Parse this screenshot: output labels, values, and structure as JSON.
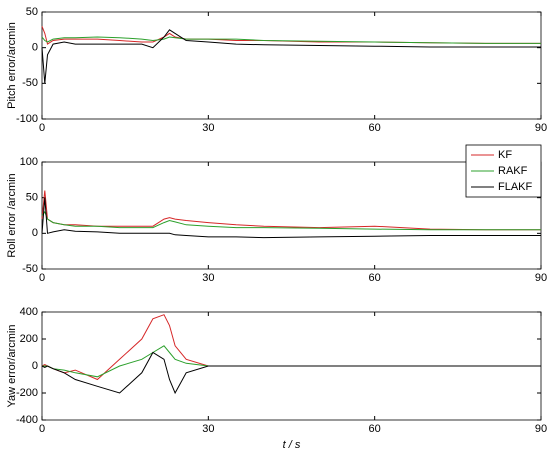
{
  "chart_data": [
    {
      "type": "line",
      "y_label": "Pitch error/arcmin",
      "x": [
        0,
        0.5,
        1,
        2,
        4,
        6,
        10,
        14,
        18,
        20,
        22,
        23,
        24,
        26,
        30,
        35,
        40,
        50,
        60,
        70,
        80,
        90
      ],
      "xlim": [
        0,
        90
      ],
      "xticks": [
        0,
        30,
        60,
        90
      ],
      "ylim": [
        -100,
        50
      ],
      "yticks": [
        -100,
        -50,
        0,
        50
      ],
      "series": [
        {
          "name": "KF",
          "color": "#d62728",
          "values": [
            30,
            20,
            5,
            10,
            12,
            12,
            12,
            10,
            8,
            8,
            15,
            20,
            15,
            12,
            12,
            10,
            10,
            8,
            8,
            7,
            6,
            6
          ]
        },
        {
          "name": "RAKF",
          "color": "#2ca02c",
          "values": [
            15,
            10,
            8,
            12,
            14,
            14,
            15,
            14,
            12,
            10,
            12,
            15,
            14,
            12,
            12,
            12,
            10,
            9,
            8,
            7,
            6,
            6
          ]
        },
        {
          "name": "FLAKF",
          "color": "#000000",
          "values": [
            0,
            -50,
            -10,
            5,
            8,
            5,
            5,
            5,
            5,
            0,
            15,
            25,
            20,
            10,
            8,
            5,
            4,
            3,
            2,
            1,
            1,
            1
          ]
        }
      ]
    },
    {
      "type": "line",
      "y_label": "Roll error /arcmin",
      "legend": "upper right",
      "x": [
        0,
        0.5,
        1,
        2,
        4,
        6,
        10,
        14,
        18,
        20,
        22,
        23,
        24,
        26,
        30,
        35,
        40,
        50,
        60,
        70,
        80,
        90
      ],
      "xlim": [
        0,
        90
      ],
      "xticks": [
        0,
        30,
        60,
        90
      ],
      "ylim": [
        -50,
        100
      ],
      "yticks": [
        -50,
        0,
        50,
        100
      ],
      "series": [
        {
          "name": "KF",
          "color": "#d62728",
          "values": [
            20,
            60,
            20,
            15,
            12,
            12,
            10,
            10,
            10,
            10,
            20,
            22,
            20,
            18,
            15,
            12,
            10,
            8,
            10,
            6,
            5,
            5
          ]
        },
        {
          "name": "RAKF",
          "color": "#2ca02c",
          "values": [
            25,
            30,
            20,
            15,
            12,
            10,
            10,
            8,
            8,
            8,
            15,
            18,
            16,
            12,
            10,
            8,
            8,
            7,
            6,
            5,
            5,
            5
          ]
        },
        {
          "name": "FLAKF",
          "color": "#000000",
          "values": [
            0,
            50,
            0,
            2,
            5,
            3,
            2,
            0,
            0,
            0,
            0,
            0,
            -2,
            -3,
            -5,
            -5,
            -6,
            -5,
            -4,
            -3,
            -3,
            -3
          ]
        }
      ]
    },
    {
      "type": "line",
      "y_label": "Yaw error/arcmin",
      "x_label": "t / s",
      "x": [
        0,
        0.5,
        1,
        2,
        4,
        6,
        10,
        14,
        18,
        20,
        22,
        23,
        24,
        26,
        30,
        35,
        40,
        50,
        60,
        70,
        80,
        90
      ],
      "xlim": [
        0,
        90
      ],
      "xticks": [
        0,
        30,
        60,
        90
      ],
      "ylim": [
        -400,
        400
      ],
      "yticks": [
        -400,
        -200,
        0,
        200,
        400
      ],
      "series": [
        {
          "name": "KF",
          "color": "#d62728",
          "values": [
            0,
            10,
            0,
            -20,
            -50,
            -30,
            -100,
            50,
            200,
            350,
            380,
            300,
            150,
            50,
            0,
            0,
            0,
            0,
            0,
            0,
            0,
            0
          ]
        },
        {
          "name": "RAKF",
          "color": "#2ca02c",
          "values": [
            0,
            0,
            0,
            -20,
            -30,
            -50,
            -80,
            0,
            50,
            100,
            150,
            100,
            50,
            20,
            0,
            0,
            0,
            0,
            0,
            0,
            0,
            0
          ]
        },
        {
          "name": "FLAKF",
          "color": "#000000",
          "values": [
            0,
            -10,
            0,
            -20,
            -50,
            -100,
            -150,
            -200,
            -50,
            100,
            50,
            -100,
            -200,
            -50,
            0,
            0,
            0,
            0,
            0,
            0,
            0,
            0
          ]
        }
      ]
    }
  ]
}
